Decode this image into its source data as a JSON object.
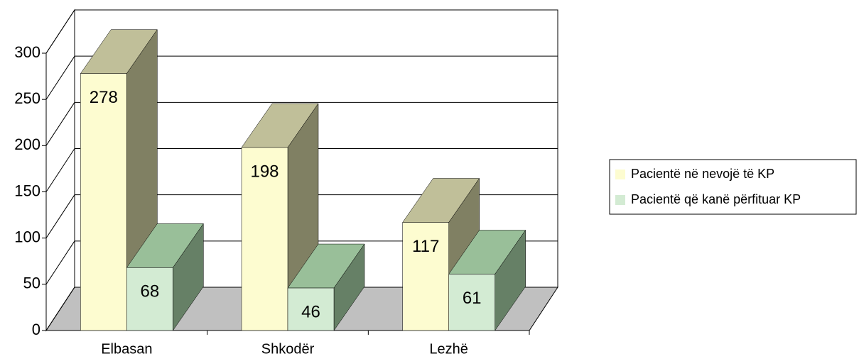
{
  "chart_data": {
    "type": "bar3d",
    "categories": [
      "Elbasan",
      "Shkodër",
      "Lezhë"
    ],
    "series": [
      {
        "name": "Pacientë në nevojë të KP",
        "color": "#fdfcd0",
        "values": [
          278,
          198,
          117
        ]
      },
      {
        "name": "Pacientë që kanë përfituar KP",
        "color": "#d3ebd3",
        "values": [
          68,
          46,
          61
        ]
      }
    ],
    "ylim": [
      0,
      300
    ],
    "yticks": [
      0,
      50,
      100,
      150,
      200,
      250,
      300
    ],
    "grid": true,
    "legend": "right"
  }
}
